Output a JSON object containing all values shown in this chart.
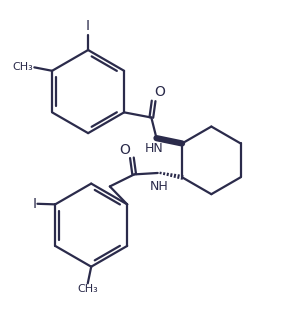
{
  "bg_color": "#ffffff",
  "line_color": "#2b2b4b",
  "line_width": 1.6,
  "figsize": [
    2.88,
    3.15
  ],
  "dpi": 100,
  "xlim": [
    0,
    10
  ],
  "ylim": [
    0,
    10.9
  ]
}
